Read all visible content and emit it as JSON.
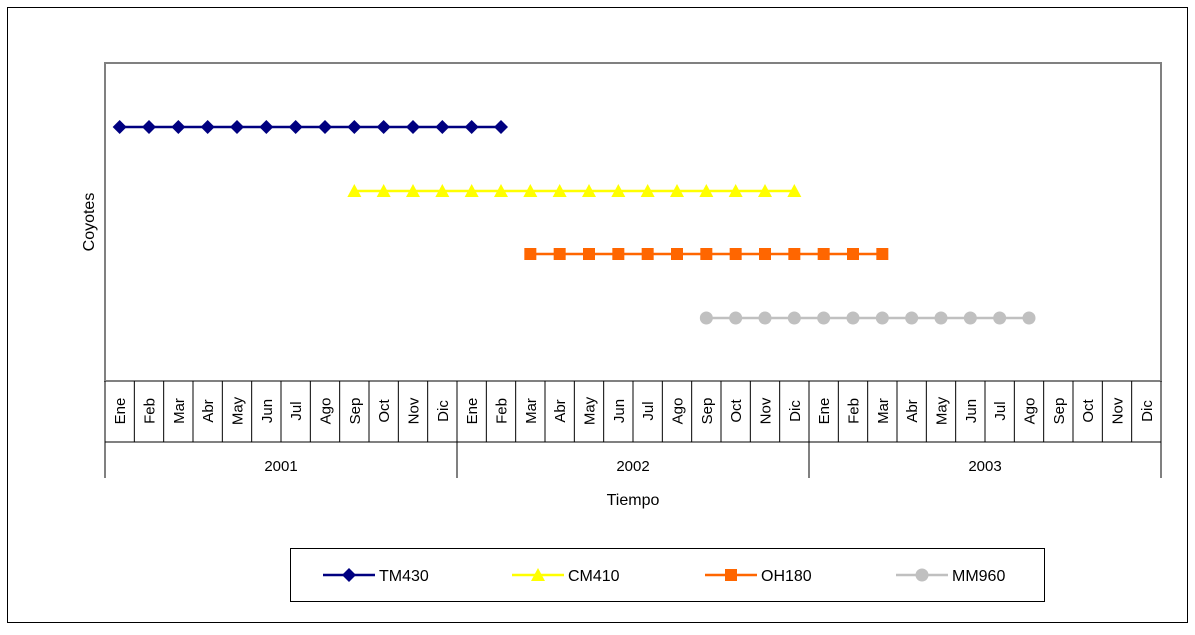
{
  "chart_data": {
    "type": "line",
    "ylabel": "Coyotes",
    "xlabel": "Tiempo",
    "months": [
      "Ene",
      "Feb",
      "Mar",
      "Abr",
      "May",
      "Jun",
      "Jul",
      "Ago",
      "Sep",
      "Oct",
      "Nov",
      "Dic"
    ],
    "years": [
      "2001",
      "2002",
      "2003"
    ],
    "grid": false,
    "legend_position": "bottom",
    "series": [
      {
        "name": "TM430",
        "color": "#000080",
        "marker": "diamond",
        "level": 4,
        "start": "2001-Ene",
        "end": "2002-Feb"
      },
      {
        "name": "CM410",
        "color": "#FFFF00",
        "marker": "triangle",
        "level": 3,
        "start": "2001-Sep",
        "end": "2002-Dic"
      },
      {
        "name": "OH180",
        "color": "#FF6600",
        "marker": "square",
        "level": 2,
        "start": "2002-Mar",
        "end": "2003-Mar"
      },
      {
        "name": "MM960",
        "color": "#C0C0C0",
        "marker": "circle",
        "level": 1,
        "start": "2002-Sep",
        "end": "2003-Ago"
      }
    ]
  }
}
